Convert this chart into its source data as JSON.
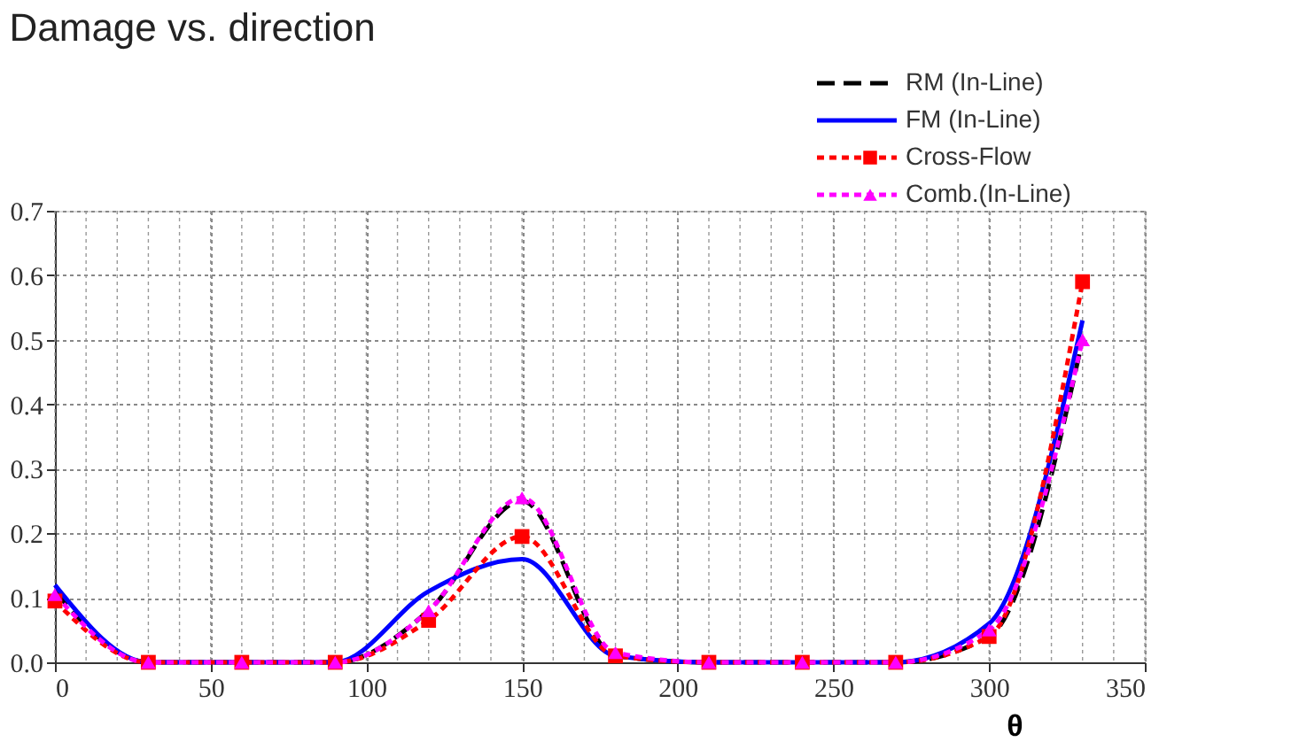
{
  "chart_data": {
    "type": "line",
    "title": "Damage vs. direction",
    "xlabel": "θ",
    "x": [
      0,
      30,
      60,
      90,
      120,
      150,
      180,
      210,
      240,
      270,
      300,
      330
    ],
    "series": [
      {
        "name": "RM (In-Line)",
        "color": "#000000",
        "line_style": "dashed",
        "marker": "none",
        "values": [
          0.11,
          0,
          0,
          0,
          0.08,
          0.25,
          0.01,
          0,
          0,
          0,
          0.04,
          0.5
        ]
      },
      {
        "name": "FM (In-Line)",
        "color": "#0000ff",
        "line_style": "solid",
        "marker": "none",
        "values": [
          0.12,
          0,
          0,
          0,
          0.11,
          0.16,
          0.01,
          0,
          0,
          0,
          0.06,
          0.53
        ]
      },
      {
        "name": "Cross-Flow",
        "color": "#ff0000",
        "line_style": "dotted",
        "marker": "square",
        "values": [
          0.095,
          0,
          0,
          0,
          0.065,
          0.195,
          0.01,
          0,
          0,
          0,
          0.04,
          0.59
        ]
      },
      {
        "name": "Comb.(In-Line)",
        "color": "#ff00ff",
        "line_style": "dotted",
        "marker": "triangle",
        "values": [
          0.105,
          0,
          0,
          0,
          0.08,
          0.255,
          0.015,
          0,
          0,
          0,
          0.05,
          0.5
        ]
      }
    ],
    "xlim": [
      0,
      350
    ],
    "xticks": [
      0,
      50,
      100,
      150,
      200,
      250,
      300,
      350
    ],
    "ylim": [
      0,
      0.7
    ],
    "yticks": [
      {
        "value": 0,
        "label": "0.0"
      },
      0.1,
      0.2,
      0.3,
      0.4,
      0.5,
      0.6,
      0.7
    ],
    "grid": true,
    "legend": "top right"
  }
}
